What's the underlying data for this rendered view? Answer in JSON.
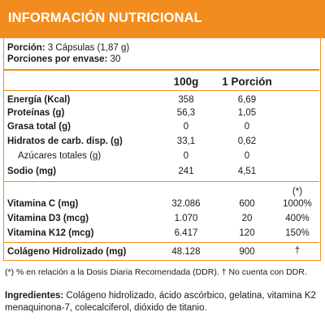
{
  "header": {
    "title": "INFORMACIÓN NUTRICIONAL"
  },
  "serving": {
    "portion_label": "Porción:",
    "portion_value": "3 Cápsulas (1,87 g)",
    "per_package_label": "Porciones por envase:",
    "per_package_value": "30"
  },
  "columns": {
    "per100": "100g",
    "perportion": "1 Porción",
    "ddr": "(*)"
  },
  "nutrients": [
    {
      "name": "Energía (Kcal)",
      "per100": "358",
      "portion": "6,69"
    },
    {
      "name": "Proteínas (g)",
      "per100": "56,3",
      "portion": "1,05"
    },
    {
      "name": "Grasa total (g)",
      "per100": "0",
      "portion": "0"
    },
    {
      "name": "Hidratos de carb. disp. (g)",
      "per100": "33,1",
      "portion": "0,62"
    },
    {
      "name": "Azúcares totales (g)",
      "per100": "0",
      "portion": "0"
    },
    {
      "name": "Sodio (mg)",
      "per100": "241",
      "portion": "4,51"
    }
  ],
  "vitamins": [
    {
      "name": "Vitamina C (mg)",
      "per100": "32.086",
      "portion": "600",
      "ddr": "1000%"
    },
    {
      "name": "Vitamina D3 (mcg)",
      "per100": "1.070",
      "portion": "20",
      "ddr": "400%"
    },
    {
      "name": "Vitamina K12 (mcg)",
      "per100": "6.417",
      "portion": "120",
      "ddr": "150%"
    }
  ],
  "collagen": {
    "name": "Colágeno Hidrolizado (mg)",
    "per100": "48.128",
    "portion": "900",
    "ddr": "†"
  },
  "footnote": "(*) % en relación a la Dosis Diaria Recomendada (DDR). † No cuenta con DDR.",
  "ingredients": {
    "label": "Ingredientes:",
    "text": "Colágeno hidrolizado, ácido ascórbico, gelatina, vitamina K2 menaquinona-7, colecalciferol, dióxido de titanio."
  },
  "colors": {
    "accent": "#f28c1e",
    "text": "#1a1a1a"
  }
}
